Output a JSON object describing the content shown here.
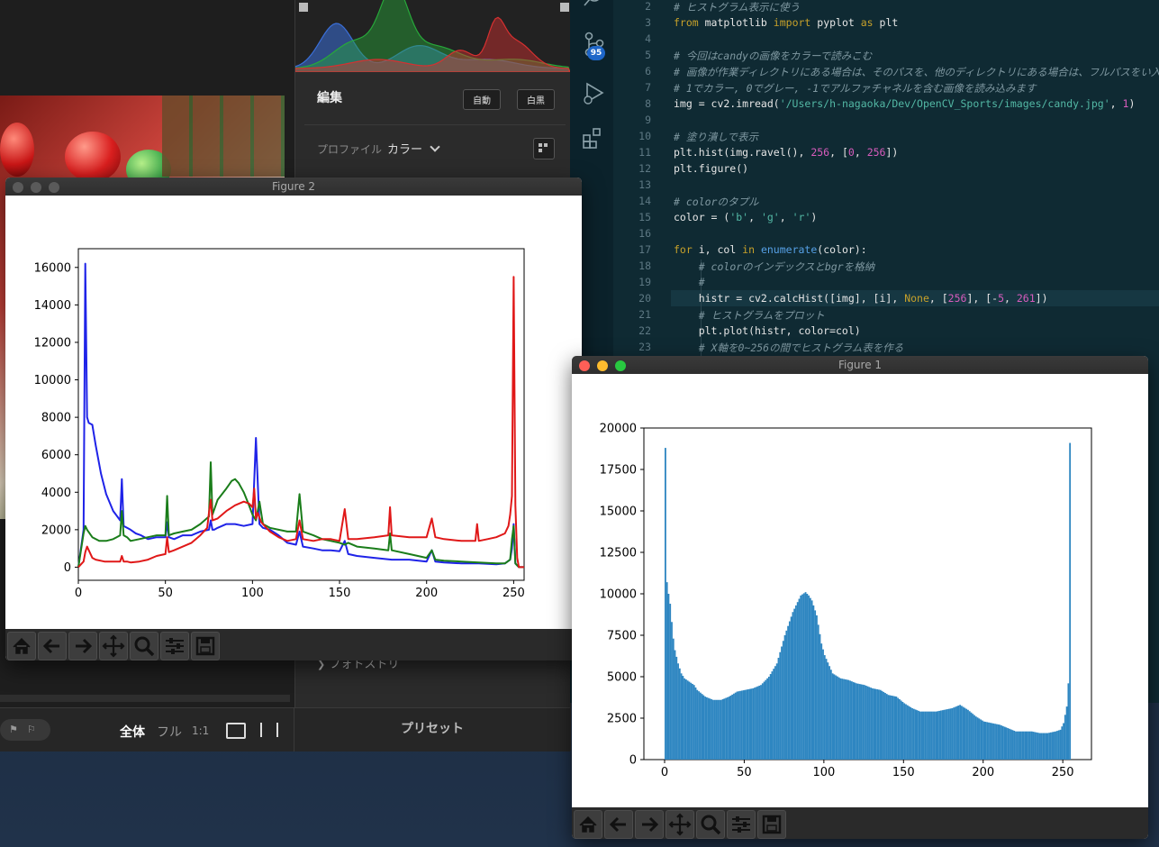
{
  "lightroom": {
    "edit_title": "編集",
    "auto_button": "自動",
    "bw_button": "白黒",
    "profile_label": "プロファイル",
    "profile_value": "カラー",
    "photo_section": "フォトストリ",
    "preset_label": "プリセット",
    "view_all": "全体",
    "view_full": "フル",
    "view_1to1": "1:1",
    "histogram_colors": {
      "blue": "#3a6fd8",
      "green": "#27a83a",
      "red": "#d63030"
    }
  },
  "vscode": {
    "badge": "95",
    "lines": [
      {
        "n": "2",
        "tokens": [
          [
            "cm",
            "# ヒストグラム表示に使う"
          ]
        ]
      },
      {
        "n": "3",
        "tokens": [
          [
            "kw",
            "from "
          ],
          [
            "",
            "matplotlib "
          ],
          [
            "kw",
            "import "
          ],
          [
            "",
            "pyplot "
          ],
          [
            "kw",
            "as "
          ],
          [
            "",
            "plt"
          ]
        ]
      },
      {
        "n": "4",
        "tokens": []
      },
      {
        "n": "5",
        "tokens": [
          [
            "cm",
            "# 今回はcandyの画像をカラーで読みこむ"
          ]
        ]
      },
      {
        "n": "6",
        "tokens": [
          [
            "cm",
            "# 画像が作業ディレクトリにある場合は、そのパスを、他のディレクトリにある場合は、フルパスをい入れる必要"
          ]
        ]
      },
      {
        "n": "7",
        "tokens": [
          [
            "cm",
            "# 1でカラー, 0でグレー, -1でアルファチャネルを含む画像を読み込みます"
          ]
        ]
      },
      {
        "n": "8",
        "tokens": [
          [
            "",
            "img = cv2.imread("
          ],
          [
            "st",
            "'/Users/h-nagaoka/Dev/OpenCV_Sports/images/candy.jpg'"
          ],
          [
            "",
            ", "
          ],
          [
            "nu",
            "1"
          ],
          [
            "",
            ")"
          ]
        ]
      },
      {
        "n": "9",
        "tokens": []
      },
      {
        "n": "10",
        "tokens": [
          [
            "cm",
            "# 塗り潰しで表示"
          ]
        ]
      },
      {
        "n": "11",
        "tokens": [
          [
            "",
            "plt.hist(img.ravel(), "
          ],
          [
            "nu",
            "256"
          ],
          [
            "",
            ", ["
          ],
          [
            "nu",
            "0"
          ],
          [
            "",
            ", "
          ],
          [
            "nu",
            "256"
          ],
          [
            "",
            "])"
          ]
        ]
      },
      {
        "n": "12",
        "tokens": [
          [
            "",
            "plt.figure()"
          ]
        ]
      },
      {
        "n": "13",
        "tokens": []
      },
      {
        "n": "14",
        "tokens": [
          [
            "cm",
            "# colorのタプル"
          ]
        ]
      },
      {
        "n": "15",
        "tokens": [
          [
            "",
            "color = ("
          ],
          [
            "st",
            "'b'"
          ],
          [
            "",
            ", "
          ],
          [
            "st",
            "'g'"
          ],
          [
            "",
            ", "
          ],
          [
            "st",
            "'r'"
          ],
          [
            "",
            ")"
          ]
        ]
      },
      {
        "n": "16",
        "tokens": []
      },
      {
        "n": "17",
        "tokens": [
          [
            "kw",
            "for "
          ],
          [
            "",
            "i, col "
          ],
          [
            "kw",
            "in "
          ],
          [
            "bl",
            "enumerate"
          ],
          [
            "",
            "(color):"
          ]
        ]
      },
      {
        "n": "18",
        "tokens": [
          [
            "",
            "    "
          ],
          [
            "cm",
            "# colorのインデックスとbgrを格納"
          ]
        ]
      },
      {
        "n": "19",
        "tokens": [
          [
            "",
            "    "
          ],
          [
            "cm",
            "#"
          ]
        ]
      },
      {
        "n": "20",
        "tokens": [
          [
            "",
            "    histr = cv2.calcHist([img], [i], "
          ],
          [
            "kw",
            "None"
          ],
          [
            "",
            ", ["
          ],
          [
            "nu",
            "256"
          ],
          [
            "",
            "], [-"
          ],
          [
            "nu",
            "5"
          ],
          [
            "",
            ", "
          ],
          [
            "nu",
            "261"
          ],
          [
            "",
            "])"
          ]
        ]
      },
      {
        "n": "21",
        "tokens": [
          [
            "",
            "    "
          ],
          [
            "cm",
            "# ヒストグラムをプロット"
          ]
        ]
      },
      {
        "n": "22",
        "tokens": [
          [
            "",
            "    plt.plot(histr, color=col)"
          ]
        ]
      },
      {
        "n": "23",
        "tokens": [
          [
            "",
            "    "
          ],
          [
            "cm",
            "# X軸を0~256の間でヒストグラム表を作る"
          ]
        ]
      }
    ]
  },
  "figure2": {
    "title": "Figure 2",
    "chart_data": {
      "type": "line",
      "title": "",
      "xlabel": "",
      "ylabel": "",
      "xlim": [
        0,
        256
      ],
      "ylim": [
        -700,
        17000
      ],
      "xticks": [
        0,
        50,
        100,
        150,
        200,
        250
      ],
      "yticks": [
        0,
        2000,
        4000,
        6000,
        8000,
        10000,
        12000,
        14000,
        16000
      ],
      "series": [
        {
          "color": "#1f23e8",
          "x": [
            0,
            3,
            4,
            5,
            6,
            8,
            10,
            13,
            16,
            20,
            24,
            25,
            26,
            28,
            30,
            33,
            36,
            40,
            45,
            50,
            51,
            52,
            55,
            60,
            65,
            70,
            75,
            76,
            77,
            78,
            80,
            85,
            90,
            95,
            100,
            102,
            104,
            106,
            110,
            115,
            120,
            125,
            127,
            129,
            135,
            140,
            145,
            150,
            153,
            155,
            160,
            170,
            180,
            190,
            200,
            203,
            205,
            210,
            220,
            230,
            240,
            245,
            248,
            249,
            250,
            251,
            252,
            253,
            256
          ],
          "y": [
            0,
            2000,
            16200,
            8000,
            7700,
            7600,
            6500,
            5000,
            3900,
            3000,
            2500,
            4700,
            2200,
            2100,
            2000,
            1800,
            1700,
            1500,
            1600,
            1600,
            2400,
            1600,
            1500,
            1700,
            1700,
            1900,
            2000,
            2500,
            2000,
            2000,
            2100,
            2300,
            2300,
            2200,
            2300,
            6900,
            2300,
            2100,
            2000,
            1700,
            1300,
            1200,
            1900,
            1100,
            1000,
            900,
            900,
            850,
            1400,
            700,
            600,
            500,
            400,
            400,
            300,
            900,
            300,
            250,
            200,
            200,
            150,
            200,
            400,
            1000,
            2300,
            200,
            100,
            0,
            0
          ]
        },
        {
          "color": "#1a7d1a",
          "x": [
            0,
            3,
            4,
            5,
            8,
            12,
            16,
            20,
            24,
            25,
            26,
            28,
            30,
            35,
            40,
            45,
            50,
            51,
            52,
            55,
            60,
            65,
            70,
            75,
            76,
            77,
            80,
            85,
            88,
            90,
            92,
            95,
            98,
            100,
            102,
            104,
            106,
            110,
            115,
            120,
            125,
            127,
            129,
            135,
            140,
            145,
            150,
            153,
            155,
            160,
            170,
            178,
            179,
            180,
            190,
            200,
            203,
            205,
            210,
            220,
            230,
            240,
            245,
            248,
            249,
            250,
            251,
            252,
            253,
            256
          ],
          "y": [
            0,
            1800,
            2200,
            2000,
            1600,
            1400,
            1400,
            1500,
            1700,
            3000,
            1700,
            1600,
            1400,
            1500,
            1600,
            1700,
            1700,
            3800,
            1700,
            1800,
            1900,
            2000,
            2300,
            2700,
            5600,
            2800,
            3600,
            4200,
            4600,
            4700,
            4500,
            4000,
            3300,
            2800,
            2500,
            3500,
            2300,
            2100,
            2000,
            1900,
            1900,
            3900,
            1900,
            1700,
            1500,
            1400,
            1300,
            1200,
            1300,
            1100,
            1000,
            900,
            1800,
            900,
            700,
            500,
            900,
            400,
            350,
            300,
            250,
            200,
            200,
            400,
            1500,
            2200,
            200,
            100,
            0,
            0
          ]
        },
        {
          "color": "#e01818",
          "x": [
            0,
            3,
            4,
            5,
            6,
            8,
            10,
            15,
            20,
            24,
            25,
            26,
            28,
            30,
            35,
            40,
            45,
            50,
            51,
            52,
            55,
            60,
            65,
            70,
            74,
            75,
            76,
            77,
            80,
            85,
            90,
            95,
            98,
            100,
            101,
            102,
            103,
            105,
            110,
            115,
            120,
            125,
            127,
            129,
            135,
            140,
            145,
            150,
            153,
            155,
            160,
            170,
            178,
            179,
            180,
            190,
            200,
            203,
            205,
            210,
            220,
            228,
            229,
            230,
            235,
            240,
            245,
            247,
            248,
            249,
            250,
            251,
            252,
            253,
            256
          ],
          "y": [
            0,
            300,
            800,
            1100,
            900,
            500,
            400,
            300,
            300,
            300,
            600,
            300,
            300,
            250,
            300,
            400,
            600,
            700,
            1600,
            800,
            900,
            1100,
            1300,
            1700,
            2100,
            2900,
            3600,
            2500,
            2600,
            3000,
            3300,
            3500,
            3400,
            3200,
            4200,
            2600,
            2900,
            2400,
            1900,
            1600,
            1400,
            1500,
            2500,
            1500,
            1400,
            1500,
            1500,
            1400,
            3100,
            1500,
            1500,
            1600,
            1700,
            3200,
            1700,
            1600,
            1600,
            2600,
            1600,
            1500,
            1400,
            1400,
            2300,
            1400,
            1500,
            1600,
            1800,
            2200,
            2800,
            3800,
            15500,
            3300,
            500,
            0,
            0
          ]
        }
      ]
    }
  },
  "figure1": {
    "title": "Figure 1",
    "chart_data": {
      "type": "bar",
      "title": "",
      "xlabel": "",
      "ylabel": "",
      "color": "#2e86c1",
      "xlim": [
        -13,
        268
      ],
      "ylim": [
        0,
        20000
      ],
      "xticks": [
        0,
        50,
        100,
        150,
        200,
        250
      ],
      "yticks": [
        0,
        2500,
        5000,
        7500,
        10000,
        12500,
        15000,
        17500,
        20000
      ],
      "knots_x": [
        0,
        0.5,
        1,
        2,
        3,
        4,
        5,
        6,
        8,
        10,
        12,
        15,
        18,
        20,
        25,
        30,
        35,
        40,
        45,
        50,
        55,
        60,
        65,
        70,
        75,
        80,
        85,
        88,
        90,
        92,
        95,
        98,
        100,
        105,
        110,
        115,
        120,
        125,
        130,
        135,
        140,
        145,
        150,
        155,
        160,
        165,
        170,
        175,
        180,
        185,
        190,
        195,
        200,
        205,
        210,
        215,
        220,
        225,
        230,
        235,
        240,
        245,
        248,
        250,
        252,
        253,
        254,
        255
      ],
      "knots_y": [
        18800,
        10200,
        10700,
        10000,
        9400,
        8300,
        7300,
        6600,
        5800,
        5200,
        4900,
        4700,
        4500,
        4200,
        3800,
        3600,
        3600,
        3800,
        4100,
        4200,
        4300,
        4500,
        5000,
        5800,
        7500,
        8900,
        9900,
        10100,
        9900,
        9600,
        8700,
        7000,
        6300,
        5200,
        4900,
        4800,
        4600,
        4500,
        4300,
        4200,
        3900,
        3800,
        3400,
        3100,
        2900,
        2900,
        2900,
        3000,
        3100,
        3300,
        3000,
        2600,
        2300,
        2200,
        2100,
        1900,
        1700,
        1700,
        1700,
        1600,
        1600,
        1700,
        1800,
        2200,
        3200,
        4600,
        19100,
        0
      ]
    }
  }
}
